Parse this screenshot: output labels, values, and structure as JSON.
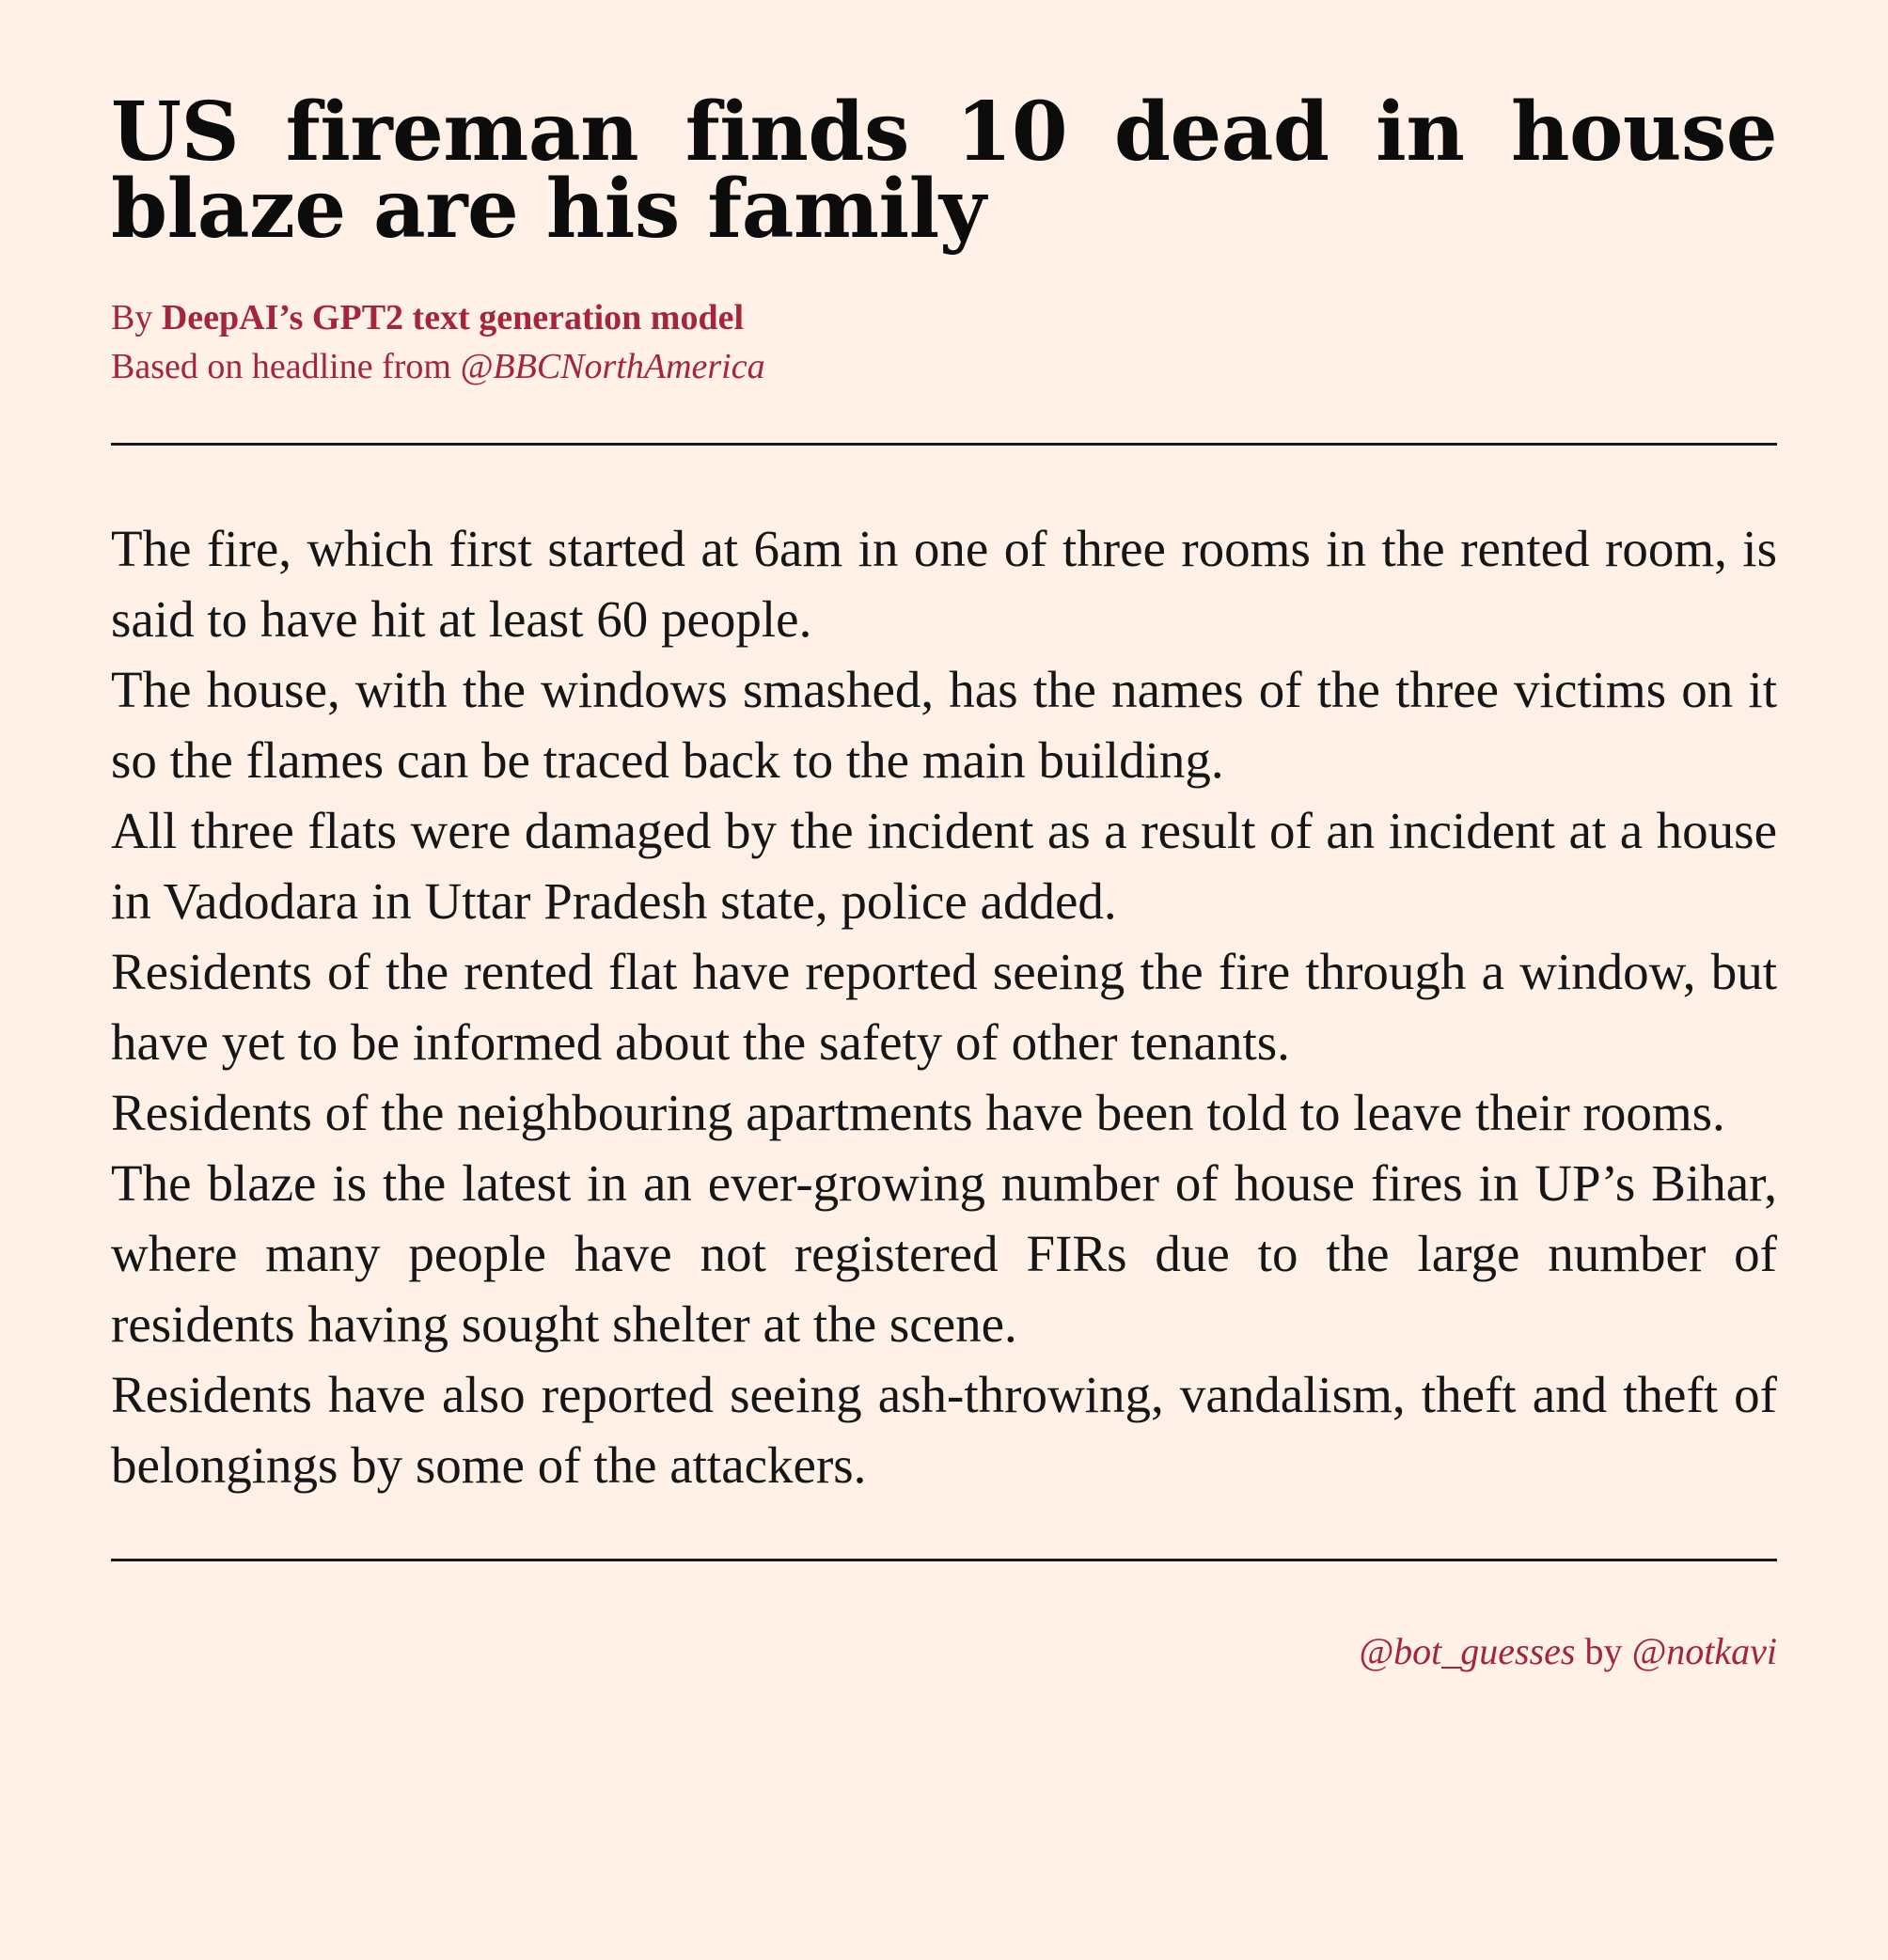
{
  "headline": "US fireman finds 10 dead in house blaze are his family",
  "byline": {
    "by_prefix": "By ",
    "author": "DeepAI’s GPT2 text generation model",
    "based_on_prefix": "Based on headline from ",
    "source_handle": "@BBCNorthAmerica"
  },
  "article": {
    "paragraphs": [
      "The fire, which first started at 6am in one of three rooms in the rented room, is said to have hit at least 60 people.",
      "The house, with the windows smashed, has the names of the three victims on it so the flames can be traced back to the main building.",
      "All three flats were damaged by the incident as a result of an incident at a house in Vadodara in Uttar Pradesh state, police added.",
      "Residents of the rented flat have reported seeing the fire through a window, but have yet to be informed about the safety of other tenants.",
      "Residents of the neighbouring apartments have been told to leave their rooms.",
      "The blaze is the latest in an ever-growing number of house fires in UP’s Bihar, where many people have not registered FIRs due to the large number of residents having sought shelter at the scene.",
      "Residents have also reported seeing ash-throwing, vandalism, theft and theft of belongings by some of the attackers."
    ]
  },
  "credits": {
    "bot_handle": "@bot_guesses",
    "by_word": " by ",
    "author_handle": "@notkavi"
  },
  "colors": {
    "background": "#fff1e7",
    "accent": "#a3263a",
    "text": "#111111"
  }
}
